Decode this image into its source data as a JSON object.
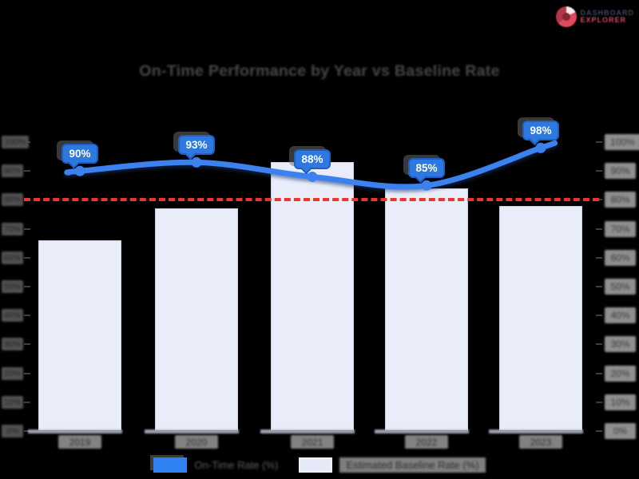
{
  "logo": {
    "line1": "DASHBOARD",
    "line2": "EXPLORER",
    "icon": "donut-chart-icon",
    "color_primary": "#e0495c",
    "color_secondary": "#3f4660"
  },
  "title": "On-Time Performance by Year vs Baseline Rate",
  "chart_data": {
    "type": "combo",
    "categories": [
      "2019",
      "2020",
      "2021",
      "2022",
      "2023"
    ],
    "series": [
      {
        "name": "On-Time Rate (%)",
        "type": "line",
        "values": [
          90,
          93,
          88,
          85,
          98
        ],
        "point_labels": [
          "90%",
          "93%",
          "88%",
          "85%",
          "98%"
        ],
        "color": "#3b82ee",
        "label_bg": "#2e79e0",
        "label_border": "#1e5fc2",
        "label_text_color": "#ffffff"
      },
      {
        "name": "Estimated Baseline Rate (%)",
        "type": "bar",
        "values": [
          66,
          77,
          93,
          84,
          78
        ],
        "color": "#e9edf9",
        "border_color": "#ccd1e2"
      }
    ],
    "threshold": {
      "value": 80,
      "color": "#f2332a",
      "style": "dashed"
    },
    "y_axis_left": {
      "min": 0,
      "max": 100,
      "tick_step": 10,
      "ticks": [
        "100%",
        "90%",
        "80%",
        "70%",
        "60%",
        "50%",
        "40%",
        "30%",
        "20%",
        "10%",
        "0%"
      ]
    },
    "y_axis_right": {
      "min": 0,
      "max": 100,
      "tick_step": 10,
      "ticks": [
        "100%",
        "90%",
        "80%",
        "70%",
        "60%",
        "50%",
        "40%",
        "30%",
        "20%",
        "10%",
        "0%"
      ]
    },
    "grid": false,
    "legend_position": "bottom",
    "background_color": "#000000"
  },
  "legend": {
    "items": [
      {
        "label": "On-Time Rate (%)",
        "swatch_color": "#2e82f2"
      },
      {
        "label": "Estimated Baseline Rate (%)",
        "swatch_color": "#e6eaf8"
      }
    ]
  }
}
